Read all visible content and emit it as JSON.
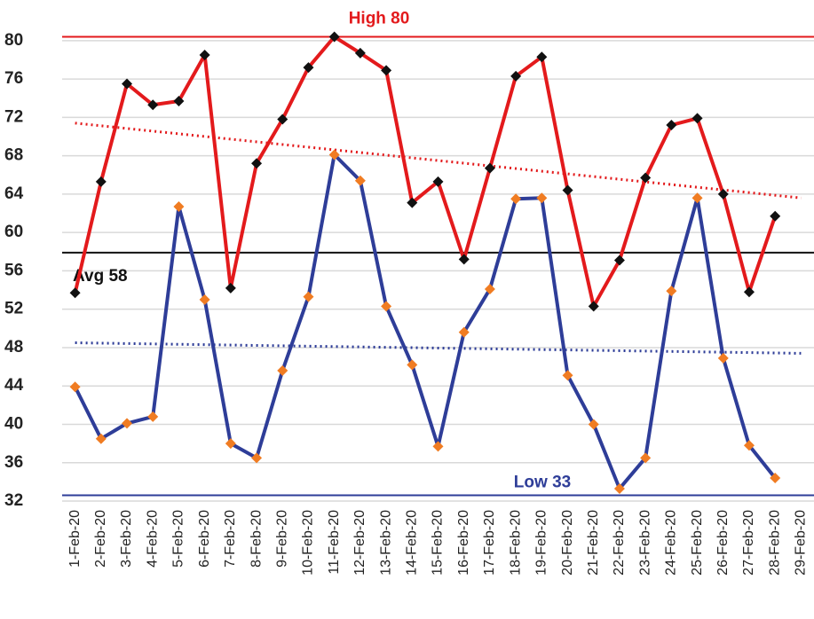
{
  "chart_data": {
    "type": "line",
    "categories": [
      "1-Feb-20",
      "2-Feb-20",
      "3-Feb-20",
      "4-Feb-20",
      "5-Feb-20",
      "6-Feb-20",
      "7-Feb-20",
      "8-Feb-20",
      "9-Feb-20",
      "10-Feb-20",
      "11-Feb-20",
      "12-Feb-20",
      "13-Feb-20",
      "14-Feb-20",
      "15-Feb-20",
      "16-Feb-20",
      "17-Feb-20",
      "18-Feb-20",
      "19-Feb-20",
      "20-Feb-20",
      "21-Feb-20",
      "22-Feb-20",
      "23-Feb-20",
      "24-Feb-20",
      "25-Feb-20",
      "26-Feb-20",
      "27-Feb-20",
      "28-Feb-20",
      "29-Feb-20"
    ],
    "series": [
      {
        "color": "#e31a1c",
        "marker_color": "#111111",
        "values": [
          53.7,
          65.3,
          75.5,
          73.3,
          73.7,
          78.5,
          54.2,
          67.2,
          71.8,
          77.2,
          80.4,
          78.7,
          76.9,
          63.1,
          65.3,
          57.2,
          66.7,
          76.3,
          78.3,
          64.4,
          52.3,
          57.1,
          65.7,
          71.2,
          71.9,
          64.0,
          53.8,
          61.7,
          null
        ],
        "trend": {
          "start": 71.4,
          "end": 63.6
        }
      },
      {
        "color": "#2e3d98",
        "marker_color": "#f07c22",
        "values": [
          43.9,
          38.5,
          40.1,
          40.8,
          62.7,
          53.0,
          38.0,
          36.5,
          45.6,
          53.3,
          68.1,
          65.4,
          52.3,
          46.2,
          37.7,
          49.6,
          54.1,
          63.5,
          63.6,
          45.1,
          40.0,
          33.3,
          36.5,
          53.9,
          63.6,
          46.9,
          37.8,
          34.4,
          null
        ],
        "trend": {
          "start": 48.5,
          "end": 47.4
        }
      }
    ],
    "reference_lines": [
      {
        "label": "High 80",
        "value": 80.4,
        "color": "#e31a1c",
        "label_color": "#e31a1c"
      },
      {
        "label": "Avg 58",
        "value": 57.9,
        "color": "#111111",
        "label_color": "#111111"
      },
      {
        "label": "Low 33",
        "value": 32.6,
        "color": "#2e3d98",
        "label_color": "#2e3d98"
      }
    ],
    "ylim": [
      32,
      81
    ],
    "yticks": [
      32,
      36,
      40,
      44,
      48,
      52,
      56,
      60,
      64,
      68,
      72,
      76,
      80
    ],
    "grid": true
  }
}
